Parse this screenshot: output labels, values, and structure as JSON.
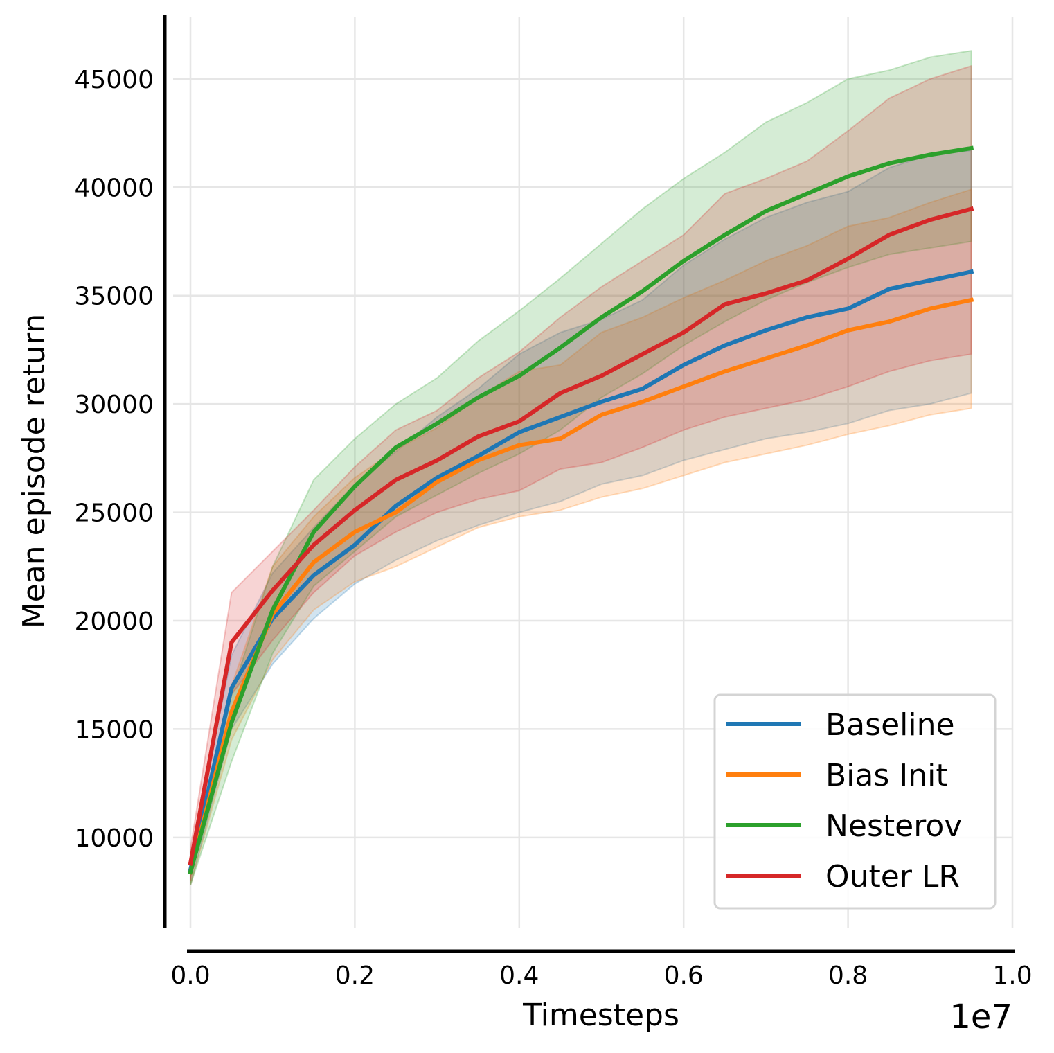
{
  "chart_data": {
    "type": "line",
    "xlabel": "Timesteps",
    "ylabel": "Mean episode return",
    "x_offset_label": "1e7",
    "xlim": [
      0.0,
      1.0
    ],
    "ylim": [
      6000,
      48000
    ],
    "xticks": [
      0.0,
      0.2,
      0.4,
      0.6,
      0.8,
      1.0
    ],
    "xtick_labels": [
      "0.0",
      "0.2",
      "0.4",
      "0.6",
      "0.8",
      "1.0"
    ],
    "yticks": [
      10000,
      15000,
      20000,
      25000,
      30000,
      35000,
      40000,
      45000
    ],
    "ytick_labels": [
      "10000",
      "15000",
      "20000",
      "25000",
      "30000",
      "35000",
      "40000",
      "45000"
    ],
    "grid": true,
    "legend_position": "bottom-right",
    "x": [
      0.0,
      0.05,
      0.1,
      0.15,
      0.2,
      0.25,
      0.3,
      0.35,
      0.4,
      0.45,
      0.5,
      0.55,
      0.6,
      0.65,
      0.7,
      0.75,
      0.8,
      0.85,
      0.9,
      0.95
    ],
    "series": [
      {
        "name": "Baseline",
        "color": "#1f77b4",
        "values": [
          8500,
          16900,
          20100,
          22100,
          23500,
          25300,
          26600,
          27600,
          28700,
          29400,
          30100,
          30700,
          31800,
          32700,
          33400,
          34000,
          34400,
          35300,
          35700,
          36100
        ],
        "lower": [
          7800,
          15000,
          18000,
          20100,
          21700,
          22800,
          23700,
          24400,
          25000,
          25500,
          26300,
          26700,
          27400,
          27900,
          28400,
          28700,
          29100,
          29700,
          30000,
          30500
        ],
        "upper": [
          9000,
          18400,
          22200,
          24300,
          26300,
          27800,
          29400,
          30700,
          32300,
          33300,
          33900,
          34800,
          36400,
          37600,
          38600,
          39300,
          39800,
          40900,
          41500,
          41700
        ]
      },
      {
        "name": "Bias Init",
        "color": "#ff7f0e",
        "values": [
          8400,
          15800,
          20300,
          22700,
          24100,
          25000,
          26400,
          27400,
          28100,
          28400,
          29500,
          30100,
          30800,
          31500,
          32100,
          32700,
          33400,
          33800,
          34400,
          34800
        ],
        "lower": [
          7800,
          14500,
          18200,
          20500,
          21800,
          22500,
          23400,
          24300,
          24800,
          25100,
          25700,
          26100,
          26700,
          27300,
          27700,
          28100,
          28600,
          29000,
          29500,
          29800
        ],
        "upper": [
          9000,
          17000,
          22500,
          24800,
          26600,
          27900,
          28900,
          30300,
          31500,
          31800,
          33300,
          34000,
          34900,
          35700,
          36600,
          37300,
          38200,
          38600,
          39300,
          39900
        ]
      },
      {
        "name": "Nesterov",
        "color": "#2ca02c",
        "values": [
          8400,
          15300,
          20500,
          24100,
          26200,
          28000,
          29100,
          30300,
          31300,
          32600,
          34000,
          35200,
          36600,
          37800,
          38900,
          39700,
          40500,
          41100,
          41500,
          41800
        ],
        "lower": [
          7800,
          13500,
          18500,
          21600,
          23200,
          24800,
          25800,
          26800,
          27700,
          28800,
          30300,
          31400,
          32700,
          33800,
          34800,
          35600,
          36300,
          36900,
          37200,
          37500
        ],
        "upper": [
          9000,
          16600,
          22500,
          26500,
          28400,
          30000,
          31200,
          32900,
          34300,
          35800,
          37400,
          39000,
          40400,
          41600,
          43000,
          43900,
          45000,
          45400,
          46000,
          46300
        ]
      },
      {
        "name": "Outer LR",
        "color": "#d62728",
        "values": [
          8800,
          19000,
          21400,
          23500,
          25100,
          26500,
          27400,
          28500,
          29200,
          30500,
          31300,
          32300,
          33300,
          34600,
          35100,
          35700,
          36700,
          37800,
          38500,
          39000
        ],
        "lower": [
          8000,
          16600,
          19100,
          21300,
          23000,
          24100,
          25000,
          25600,
          26000,
          27000,
          27300,
          28000,
          28800,
          29400,
          29800,
          30200,
          30800,
          31500,
          32000,
          32300
        ],
        "upper": [
          9500,
          21300,
          23200,
          25100,
          27100,
          28800,
          29700,
          31200,
          32400,
          34000,
          35400,
          36600,
          37800,
          39700,
          40400,
          41200,
          42600,
          44100,
          45000,
          45600
        ]
      }
    ]
  }
}
